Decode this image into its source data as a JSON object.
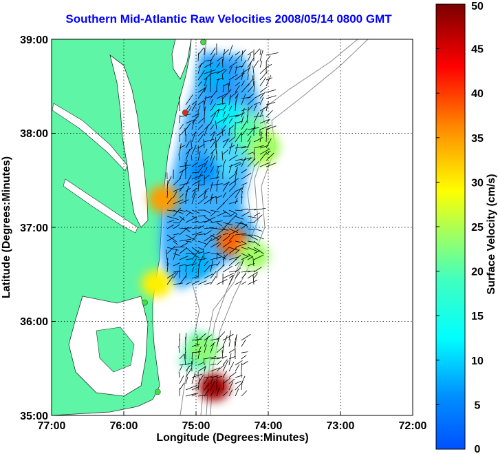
{
  "title": "Southern Mid-Atlantic Raw Velocities 2008/05/14 0800 GMT",
  "x_axis": {
    "label": "Longitude (Degrees:Minutes)",
    "ticks": [
      {
        "value": -77,
        "label": "77:00"
      },
      {
        "value": -76,
        "label": "76:00"
      },
      {
        "value": -75,
        "label": "75:00"
      },
      {
        "value": -74,
        "label": "74:00"
      },
      {
        "value": -73,
        "label": "73:00"
      },
      {
        "value": -72,
        "label": "72:00"
      }
    ]
  },
  "y_axis": {
    "label": "Latitude (Degrees:Minutes)",
    "ticks": [
      {
        "value": 35,
        "label": "35:00"
      },
      {
        "value": 36,
        "label": "36:00"
      },
      {
        "value": 37,
        "label": "37:00"
      },
      {
        "value": 38,
        "label": "38:00"
      },
      {
        "value": 39,
        "label": "39:00"
      }
    ]
  },
  "colorbar": {
    "label": "Surface Velocity (cm/s)",
    "range": [
      0,
      50
    ],
    "ticks": [
      "0",
      "5",
      "10",
      "15",
      "20",
      "25",
      "30",
      "35",
      "40",
      "45",
      "50"
    ],
    "colormap": "jet"
  },
  "colors": {
    "land": "#5ef5a6",
    "title": "#0000ff",
    "bathymetry": "#8a8a8a",
    "stations_green": "#44dd44",
    "station_red": "#ee2222"
  },
  "stations": [
    {
      "lon": -74.9,
      "lat": 38.97,
      "color": "green"
    },
    {
      "lon": -75.15,
      "lat": 38.22,
      "color": "red"
    },
    {
      "lon": -75.71,
      "lat": 36.2,
      "color": "green"
    },
    {
      "lon": -75.53,
      "lat": 35.25,
      "color": "green"
    }
  ],
  "chart_data": {
    "type": "heatmap",
    "title": "Southern Mid-Atlantic Raw Velocities 2008/05/14 0800 GMT",
    "xlabel": "Longitude (Degrees:Minutes)",
    "ylabel": "Latitude (Degrees:Minutes)",
    "xlim": [
      -77,
      -72
    ],
    "ylim": [
      35,
      39
    ],
    "color_range_cm_s": [
      0,
      50
    ],
    "grid": true,
    "patches": [
      {
        "lon": -74.75,
        "lat": 38.6,
        "speed": 8
      },
      {
        "lon": -74.6,
        "lat": 38.2,
        "speed": 12
      },
      {
        "lon": -74.3,
        "lat": 38.0,
        "speed": 20
      },
      {
        "lon": -74.05,
        "lat": 37.85,
        "speed": 24
      },
      {
        "lon": -74.9,
        "lat": 37.6,
        "speed": 6
      },
      {
        "lon": -75.45,
        "lat": 37.3,
        "speed": 35
      },
      {
        "lon": -74.5,
        "lat": 36.85,
        "speed": 38
      },
      {
        "lon": -74.2,
        "lat": 36.7,
        "speed": 24
      },
      {
        "lon": -75.0,
        "lat": 36.6,
        "speed": 8
      },
      {
        "lon": -75.55,
        "lat": 36.4,
        "speed": 30
      },
      {
        "lon": -74.9,
        "lat": 35.7,
        "speed": 23
      },
      {
        "lon": -74.75,
        "lat": 35.3,
        "speed": 48
      }
    ]
  }
}
